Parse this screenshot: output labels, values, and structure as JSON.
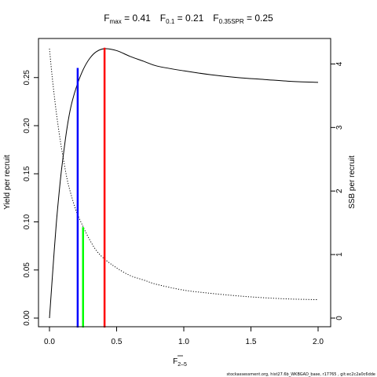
{
  "chart_data": {
    "type": "line",
    "title": {
      "fmax_label": "F",
      "fmax_sub": "max",
      "fmax_value": " = 0.41",
      "f01_label": "F",
      "f01_sub": "0.1",
      "f01_value": " = 0.21",
      "fspr_label": "F",
      "fspr_sub": "0.35SPR",
      "fspr_value": " = 0.25"
    },
    "xlabel": "F",
    "xlabel_bar": true,
    "xlabel_sub": "2–5",
    "ylabel_left": "Yield per recruit",
    "ylabel_right": "SSB per recruit",
    "footer": "stockassessment.org, hist27.6b_WKBGAD_base, r17765 , git:ec2c2a0c6dde",
    "xlim": [
      0,
      2.0
    ],
    "ylim_left": [
      0,
      0.28
    ],
    "ylim_right": [
      0,
      4.24
    ],
    "x_ticks": [
      {
        "v": 0,
        "t": "0.0"
      },
      {
        "v": 0.5,
        "t": "0.5"
      },
      {
        "v": 1.0,
        "t": "1.0"
      },
      {
        "v": 1.5,
        "t": "1.5"
      },
      {
        "v": 2.0,
        "t": "2.0"
      }
    ],
    "y_left_ticks": [
      {
        "v": 0,
        "t": "0.00"
      },
      {
        "v": 0.05,
        "t": "0.05"
      },
      {
        "v": 0.1,
        "t": "0.10"
      },
      {
        "v": 0.15,
        "t": "0.15"
      },
      {
        "v": 0.2,
        "t": "0.20"
      },
      {
        "v": 0.25,
        "t": "0.25"
      }
    ],
    "y_right_ticks": [
      {
        "v": 0,
        "t": "0"
      },
      {
        "v": 1,
        "t": "1"
      },
      {
        "v": 2,
        "t": "2"
      },
      {
        "v": 3,
        "t": "3"
      },
      {
        "v": 4,
        "t": "4"
      }
    ],
    "series": [
      {
        "axis": "left",
        "style": "solid",
        "color": "#000000",
        "x": [
          0,
          0.02,
          0.05,
          0.08,
          0.1,
          0.13,
          0.16,
          0.2,
          0.25,
          0.3,
          0.35,
          0.41,
          0.5,
          0.6,
          0.7,
          0.8,
          1.0,
          1.2,
          1.4,
          1.6,
          1.8,
          2.0
        ],
        "y": [
          0.0,
          0.04,
          0.097,
          0.142,
          0.166,
          0.197,
          0.22,
          0.24,
          0.258,
          0.27,
          0.277,
          0.28,
          0.278,
          0.272,
          0.267,
          0.262,
          0.257,
          0.253,
          0.25,
          0.248,
          0.246,
          0.245
        ]
      },
      {
        "axis": "right",
        "style": "dotted",
        "color": "#000000",
        "x": [
          0,
          0.02,
          0.05,
          0.08,
          0.1,
          0.13,
          0.16,
          0.2,
          0.25,
          0.3,
          0.35,
          0.41,
          0.5,
          0.6,
          0.7,
          0.8,
          1.0,
          1.2,
          1.4,
          1.6,
          1.8,
          2.0
        ],
        "y": [
          4.24,
          3.8,
          3.25,
          2.8,
          2.55,
          2.2,
          1.95,
          1.68,
          1.44,
          1.23,
          1.06,
          0.93,
          0.79,
          0.67,
          0.6,
          0.53,
          0.44,
          0.39,
          0.35,
          0.32,
          0.3,
          0.29
        ]
      }
    ],
    "reference_lines": [
      {
        "name": "F0.1",
        "x": 0.21,
        "y": 0.26,
        "color": "#0000ff"
      },
      {
        "name": "F0.35SPR",
        "x": 0.25,
        "y": 0.0945,
        "color": "#00ff00"
      },
      {
        "name": "Fmax",
        "x": 0.41,
        "y": 0.281,
        "color": "#ff0000"
      }
    ]
  }
}
